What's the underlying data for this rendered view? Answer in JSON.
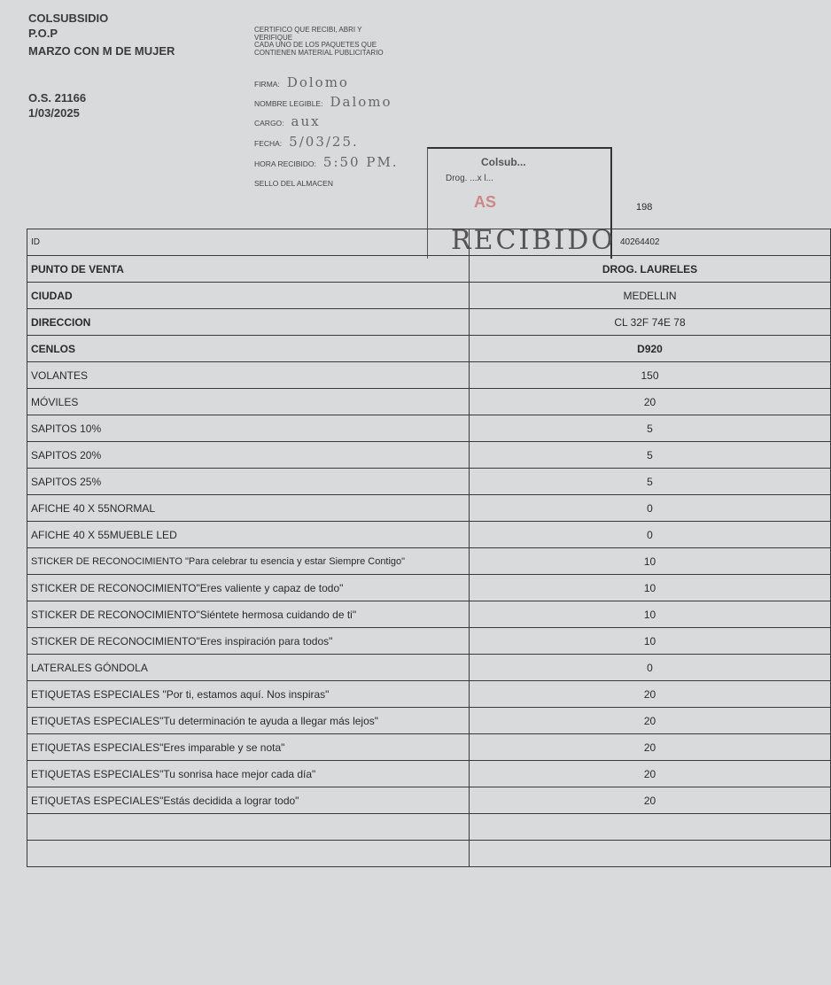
{
  "header": {
    "org": "COLSUBSIDIO",
    "dept": "P.O.P",
    "campaign": "MARZO CON M DE MUJER",
    "os": "O.S. 21166",
    "date": "1/03/2025"
  },
  "certification": {
    "lines": [
      "CERTIFICO QUE RECIBI, ABRI Y",
      "VERIFIQUE",
      "CADA  UNO DE LOS PAQUETES QUE",
      "CONTIENEN MATERIAL PUBLICITARIO"
    ],
    "firma_label": "FIRMA:",
    "firma_value": "Dolomo",
    "nombre_label": "NOMBRE LEGIBLE:",
    "nombre_value": "Dalomo",
    "cargo_label": "CARGO:",
    "cargo_value": "aux",
    "fecha_label": "FECHA:",
    "fecha_value": "5/03/25.",
    "hora_label": "HORA RECIBIDO:",
    "hora_value": "5:50 PM.",
    "sello_label": "SELLO DEL ALMACEN"
  },
  "stamp": {
    "line1": "Colsub...",
    "line2": "Drog. ...x l...",
    "mark": "AS",
    "word": "RECIBIDO"
  },
  "number_198": "198",
  "table": {
    "id_label": "ID",
    "id_value": "40264402",
    "rows": [
      {
        "label": "PUNTO DE VENTA",
        "value": "DROG. LAURELES"
      },
      {
        "label": "CIUDAD",
        "value": "MEDELLIN"
      },
      {
        "label": "DIRECCION",
        "value": "CL 32F 74E 78"
      },
      {
        "label": "CENLOS",
        "value": "D920"
      },
      {
        "label": "VOLANTES",
        "value": "150"
      },
      {
        "label": "MÓVILES",
        "value": "20"
      },
      {
        "label": "SAPITOS 10%",
        "value": "5"
      },
      {
        "label": "SAPITOS 20%",
        "value": "5"
      },
      {
        "label": "SAPITOS 25%",
        "value": "5"
      },
      {
        "label": "AFICHE 40 X 55NORMAL",
        "value": "0"
      },
      {
        "label": "AFICHE 40 X 55MUEBLE LED",
        "value": "0"
      },
      {
        "label": "STICKER DE RECONOCIMIENTO \"Para celebrar tu esencia y estar Siempre Contigo\"",
        "value": "10"
      },
      {
        "label": "STICKER DE RECONOCIMIENTO\"Eres valiente y capaz de todo\"",
        "value": "10"
      },
      {
        "label": "STICKER DE RECONOCIMIENTO\"Siéntete hermosa cuidando de ti\"",
        "value": "10"
      },
      {
        "label": "STICKER DE RECONOCIMIENTO\"Eres inspiración para todos\"",
        "value": "10"
      },
      {
        "label": "LATERALES GÓNDOLA",
        "value": "0"
      },
      {
        "label": "ETIQUETAS ESPECIALES \"Por ti, estamos aquí. Nos inspiras\"",
        "value": "20"
      },
      {
        "label": "ETIQUETAS ESPECIALES\"Tu determinación te ayuda a llegar más lejos\"",
        "value": "20"
      },
      {
        "label": "ETIQUETAS ESPECIALES\"Eres imparable y se nota\"",
        "value": "20"
      },
      {
        "label": "ETIQUETAS ESPECIALES\"Tu sonrisa hace mejor cada día\"",
        "value": "20"
      },
      {
        "label": "ETIQUETAS ESPECIALES\"Estás decidida a lograr todo\"",
        "value": "20"
      },
      {
        "label": "",
        "value": ""
      },
      {
        "label": "",
        "value": ""
      }
    ]
  }
}
